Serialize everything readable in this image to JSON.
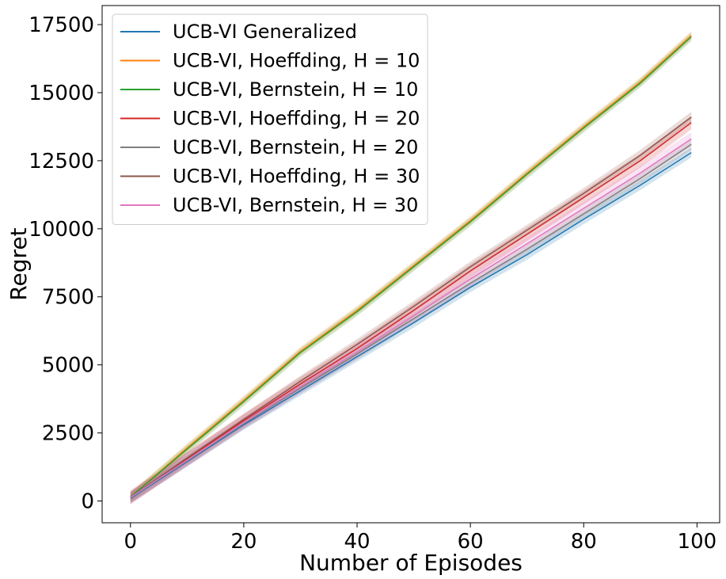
{
  "chart_data": {
    "type": "line",
    "title": "",
    "xlabel": "Number of Episodes",
    "ylabel": "Regret",
    "xlim": [
      -5,
      104
    ],
    "ylim": [
      -800,
      18200
    ],
    "xticks": [
      0,
      20,
      40,
      60,
      80,
      100
    ],
    "yticks": [
      0,
      2500,
      5000,
      7500,
      10000,
      12500,
      15000,
      17500
    ],
    "grid": false,
    "legend_position": "top-left",
    "x": [
      0,
      10,
      20,
      30,
      40,
      50,
      60,
      70,
      80,
      90,
      99
    ],
    "series": [
      {
        "name": "UCB-VI Generalized",
        "color": "#1f77b4",
        "band": 180,
        "values": [
          100,
          1450,
          2800,
          4050,
          5300,
          6550,
          7850,
          9050,
          10350,
          11600,
          12800
        ]
      },
      {
        "name": "UCB-VI, Hoeffding, H = 10",
        "color": "#ff7f0e",
        "band": 160,
        "values": [
          150,
          1950,
          3700,
          5500,
          7000,
          8650,
          10300,
          12050,
          13750,
          15400,
          17100
        ]
      },
      {
        "name": "UCB-VI, Bernstein, H = 10",
        "color": "#2ca02c",
        "band": 160,
        "values": [
          150,
          1900,
          3650,
          5450,
          6950,
          8600,
          10250,
          12000,
          13700,
          15350,
          17050
        ]
      },
      {
        "name": "UCB-VI, Hoeffding, H = 20",
        "color": "#d62728",
        "band": 250,
        "values": [
          130,
          1550,
          2950,
          4300,
          5600,
          7000,
          8450,
          9800,
          11150,
          12500,
          13900
        ]
      },
      {
        "name": "UCB-VI, Bernstein, H = 20",
        "color": "#7f7f7f",
        "band": 200,
        "values": [
          130,
          1480,
          2850,
          4150,
          5400,
          6700,
          8000,
          9250,
          10550,
          11850,
          13100
        ]
      },
      {
        "name": "UCB-VI, Hoeffding, H = 30",
        "color": "#8c564b",
        "band": 200,
        "values": [
          140,
          1580,
          3000,
          4400,
          5750,
          7150,
          8600,
          9950,
          11300,
          12700,
          14100
        ]
      },
      {
        "name": "UCB-VI, Bernstein, H = 30",
        "color": "#e377c2",
        "band": 250,
        "values": [
          130,
          1500,
          2880,
          4200,
          5480,
          6800,
          8150,
          9450,
          10750,
          12050,
          13300
        ]
      }
    ]
  }
}
